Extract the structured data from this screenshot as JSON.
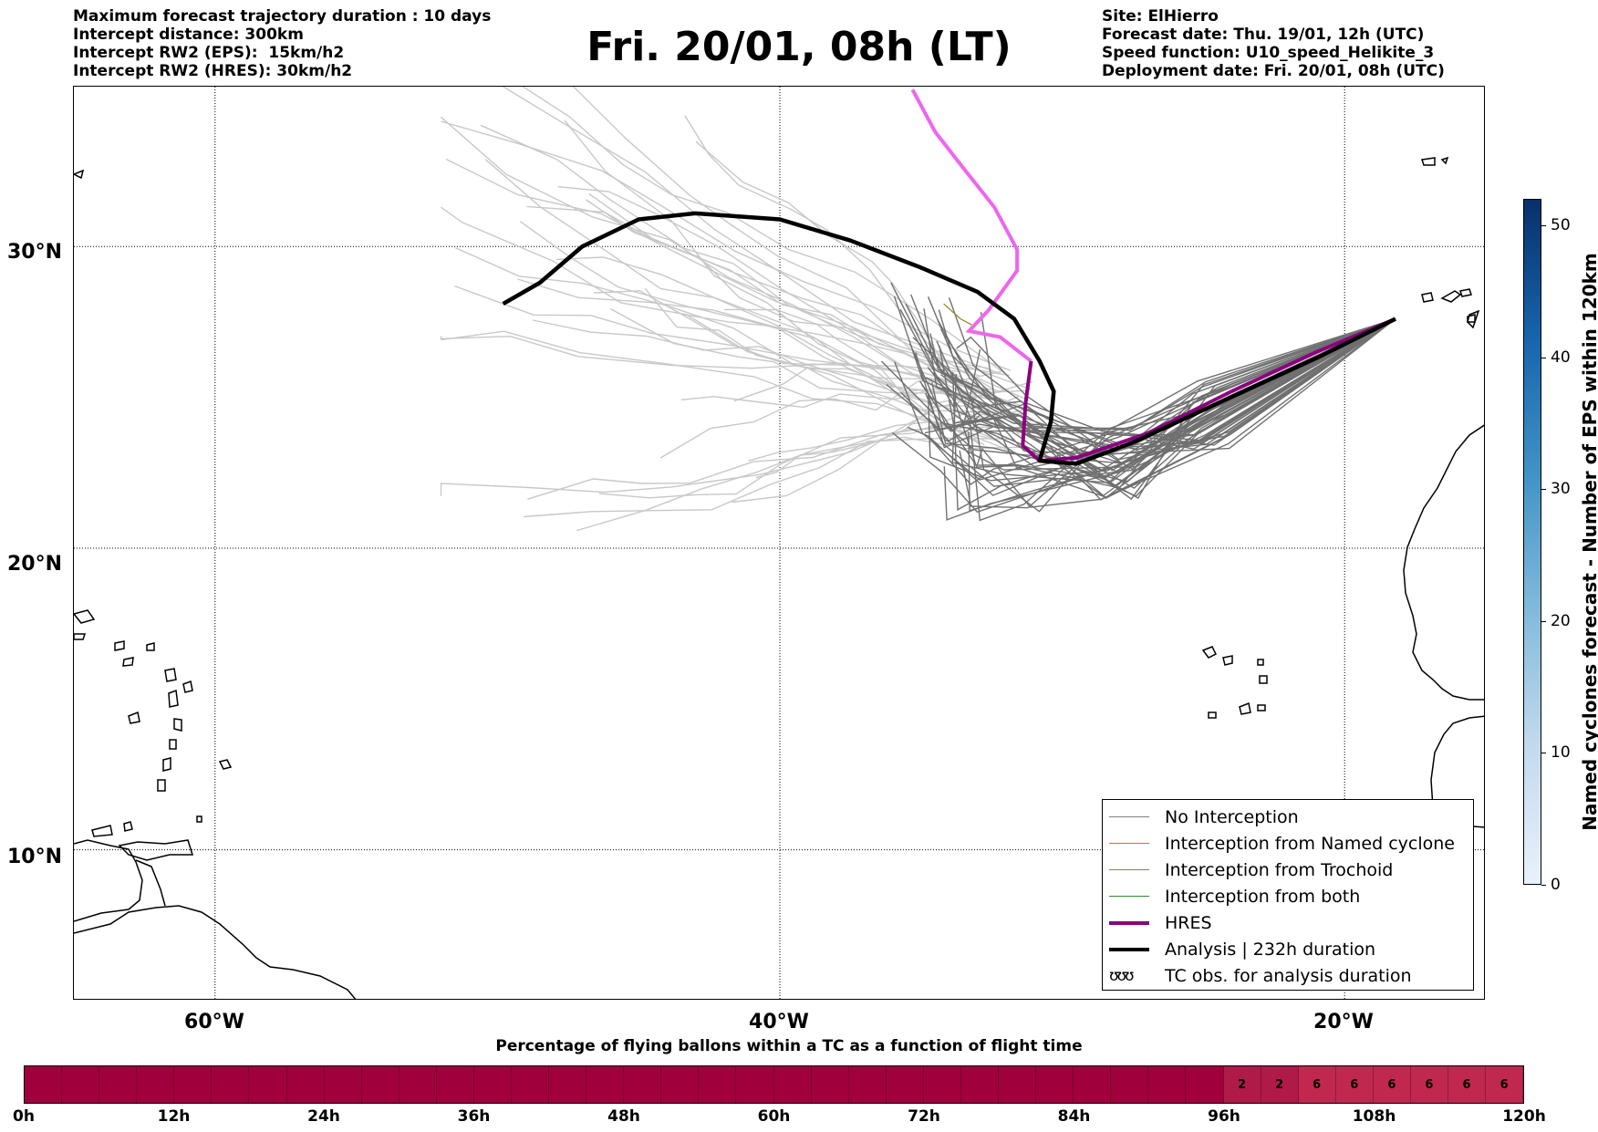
{
  "header_left": [
    "Maximum forecast trajectory duration : 10 days",
    "Intercept distance: 300km",
    "Intercept RW2 (EPS):  15km/h2",
    "Intercept RW2 (HRES): 30km/h2"
  ],
  "header_right": [
    "Site: ElHierro",
    "Forecast date: Thu. 19/01, 12h (UTC)",
    "Speed function: U10_speed_Helikite_3",
    "Deployment date: Fri. 20/01, 08h (UTC)"
  ],
  "title": "Fri. 20/01, 08h (LT)",
  "map": {
    "lat_labels": [
      "30°N",
      "20°N",
      "10°N"
    ],
    "lon_labels": [
      "60°W",
      "40°W",
      "20°W"
    ],
    "lat_values": [
      30,
      20,
      10
    ],
    "lon_values": [
      -60,
      -40,
      -20
    ],
    "extent": {
      "lon_min": -65,
      "lon_max": -15,
      "lat_min": 5,
      "lat_max": 35.3
    }
  },
  "legend": {
    "items": [
      {
        "label": "No Interception",
        "color": "#808080",
        "style": "thin"
      },
      {
        "label": "Interception from Named cyclone",
        "color": "#e8642c",
        "style": "thin"
      },
      {
        "label": "Interception from Trochoid",
        "color": "#8a8a20",
        "style": "thin"
      },
      {
        "label": "Interception from both",
        "color": "#2e8b2e",
        "style": "thin"
      },
      {
        "label": "HRES",
        "color": "#8b0080",
        "style": "thick"
      },
      {
        "label": "Analysis | 232h duration",
        "color": "#000000",
        "style": "thick"
      },
      {
        "label": "TC obs. for analysis duration",
        "color": "#000000",
        "style": "glyph",
        "glyph": "ʊʊʊ"
      }
    ]
  },
  "vertical_colorbar": {
    "label": "Named cyclones forecast - Number of EPS within 120km",
    "ticks": [
      "0",
      "10",
      "20",
      "30",
      "40",
      "50"
    ],
    "tick_values": [
      0,
      10,
      20,
      30,
      40,
      50
    ],
    "max": 52
  },
  "horizontal_bar": {
    "title": "Percentage of flying ballons within a TC as a function of flight time",
    "ticks": [
      "0h",
      "12h",
      "24h",
      "36h",
      "48h",
      "60h",
      "72h",
      "84h",
      "96h",
      "108h",
      "120h"
    ],
    "tick_hours": [
      0,
      12,
      24,
      36,
      48,
      60,
      72,
      84,
      96,
      108,
      120
    ],
    "cell_values": [
      "",
      "",
      "",
      "",
      "",
      "",
      "",
      "",
      "",
      "",
      "",
      "",
      "",
      "",
      "",
      "",
      "",
      "",
      "",
      "",
      "",
      "",
      "",
      "",
      "",
      "",
      "",
      "",
      "",
      "",
      "",
      "",
      "2",
      "2",
      "6",
      "6",
      "6",
      "6",
      "6",
      "6"
    ],
    "color_base": "#a0003c",
    "color_2": "#b01a48",
    "color_6": "#c0284f"
  },
  "chart_data": {
    "type": "map-trajectories",
    "site": "ElHierro",
    "origin": {
      "lon": -18.2,
      "lat": 27.6
    },
    "hres_track": [
      [
        -18.2,
        27.6
      ],
      [
        -21,
        26.5
      ],
      [
        -24,
        25.2
      ],
      [
        -27,
        23.8
      ],
      [
        -29.5,
        23.0
      ],
      [
        -30.8,
        22.9
      ],
      [
        -31.4,
        23.4
      ],
      [
        -31.3,
        24.8
      ],
      [
        -31.1,
        26.2
      ],
      [
        -32.2,
        27.0
      ],
      [
        -33.3,
        27.2
      ],
      [
        -32.6,
        27.9
      ],
      [
        -31.6,
        29.2
      ],
      [
        -31.6,
        29.9
      ],
      [
        -32.4,
        31.3
      ],
      [
        -33.5,
        32.6
      ],
      [
        -34.5,
        33.8
      ],
      [
        -35.3,
        35.2
      ]
    ],
    "analysis_track": [
      [
        -18.2,
        27.6
      ],
      [
        -21,
        26.3
      ],
      [
        -24.5,
        24.8
      ],
      [
        -27.5,
        23.5
      ],
      [
        -29.5,
        22.8
      ],
      [
        -30.8,
        22.9
      ],
      [
        -30.4,
        24.2
      ],
      [
        -30.3,
        25.2
      ],
      [
        -30.8,
        26.2
      ],
      [
        -31.7,
        27.6
      ],
      [
        -33,
        28.5
      ],
      [
        -35,
        29.3
      ],
      [
        -37.5,
        30.2
      ],
      [
        -40,
        30.9
      ],
      [
        -43,
        31.1
      ],
      [
        -45,
        30.9
      ],
      [
        -47,
        30.0
      ],
      [
        -48.5,
        28.8
      ],
      [
        -49.8,
        28.1
      ]
    ]
  }
}
